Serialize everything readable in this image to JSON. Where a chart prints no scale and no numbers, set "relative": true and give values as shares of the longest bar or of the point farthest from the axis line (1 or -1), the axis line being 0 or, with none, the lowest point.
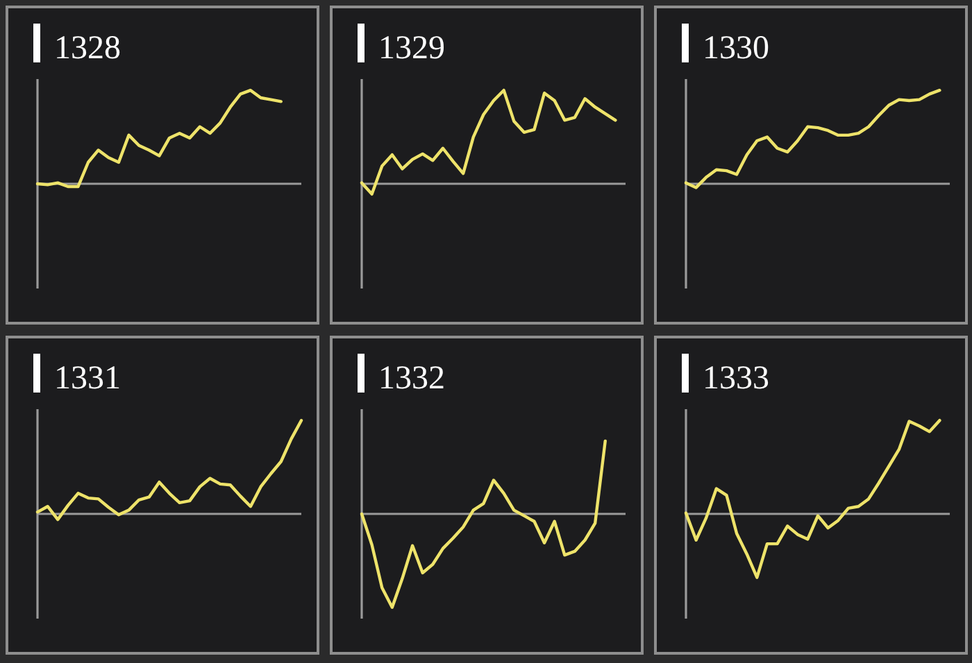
{
  "chart_data": [
    {
      "type": "line",
      "title": "1328",
      "categories": [
        null,
        null,
        null,
        null,
        null,
        null,
        null,
        null,
        null,
        null,
        null,
        null,
        null,
        null,
        null,
        null,
        null,
        null,
        null,
        null,
        null,
        null,
        null,
        null,
        null,
        null,
        null
      ],
      "values": [
        0,
        -0.01,
        0.01,
        -0.03,
        -0.03,
        0.23,
        0.36,
        0.28,
        0.23,
        0.52,
        0.41,
        0.36,
        0.3,
        0.49,
        0.54,
        0.49,
        0.61,
        0.54,
        0.65,
        0.82,
        0.96,
        1,
        0.92,
        0.9,
        0.88,
        null,
        null
      ],
      "color": "#eee36a",
      "relative": true
    },
    {
      "type": "line",
      "title": "1329",
      "categories": [
        null,
        null,
        null,
        null,
        null,
        null,
        null,
        null,
        null,
        null,
        null,
        null,
        null,
        null,
        null,
        null,
        null,
        null,
        null,
        null,
        null,
        null,
        null,
        null,
        null,
        null,
        null
      ],
      "values": [
        0.01,
        -0.11,
        0.19,
        0.31,
        0.16,
        0.26,
        0.32,
        0.25,
        0.38,
        0.24,
        0.11,
        0.5,
        0.74,
        0.89,
        1,
        0.67,
        0.55,
        0.58,
        0.97,
        0.89,
        0.68,
        0.71,
        0.91,
        0.82,
        0.75,
        0.68,
        null
      ],
      "color": "#eee36a",
      "relative": true
    },
    {
      "type": "line",
      "title": "1330",
      "categories": [
        null,
        null,
        null,
        null,
        null,
        null,
        null,
        null,
        null,
        null,
        null,
        null,
        null,
        null,
        null,
        null,
        null,
        null,
        null,
        null,
        null,
        null,
        null,
        null,
        null,
        null,
        null
      ],
      "values": [
        0.01,
        -0.04,
        0.07,
        0.15,
        0.14,
        0.1,
        0.31,
        0.46,
        0.5,
        0.38,
        0.34,
        0.46,
        0.61,
        0.6,
        0.57,
        0.52,
        0.52,
        0.54,
        0.61,
        0.73,
        0.84,
        0.9,
        0.89,
        0.9,
        0.96,
        1,
        null
      ],
      "color": "#eee36a",
      "relative": true
    },
    {
      "type": "line",
      "title": "1331",
      "categories": [
        null,
        null,
        null,
        null,
        null,
        null,
        null,
        null,
        null,
        null,
        null,
        null,
        null,
        null,
        null,
        null,
        null,
        null,
        null,
        null,
        null,
        null,
        null,
        null,
        null,
        null,
        null
      ],
      "values": [
        0.02,
        0.08,
        -0.06,
        0.09,
        0.22,
        0.17,
        0.16,
        0.07,
        -0.01,
        0.04,
        0.15,
        0.18,
        0.34,
        0.22,
        0.12,
        0.14,
        0.29,
        0.38,
        0.32,
        0.31,
        0.19,
        0.08,
        0.29,
        0.43,
        0.56,
        0.8,
        1
      ],
      "color": "#eee36a",
      "relative": true
    },
    {
      "type": "line",
      "title": "1332",
      "categories": [
        null,
        null,
        null,
        null,
        null,
        null,
        null,
        null,
        null,
        null,
        null,
        null,
        null,
        null,
        null,
        null,
        null,
        null,
        null,
        null,
        null,
        null,
        null,
        null,
        null,
        null,
        null
      ],
      "values": [
        0,
        -0.33,
        -0.79,
        -1,
        -0.69,
        -0.34,
        -0.63,
        -0.54,
        -0.37,
        -0.26,
        -0.14,
        0.04,
        0.11,
        0.36,
        0.22,
        0.04,
        -0.02,
        -0.08,
        -0.31,
        -0.08,
        -0.44,
        -0.4,
        -0.28,
        -0.1,
        0.78,
        null,
        null
      ],
      "color": "#eee36a",
      "relative": true
    },
    {
      "type": "line",
      "title": "1333",
      "categories": [
        null,
        null,
        null,
        null,
        null,
        null,
        null,
        null,
        null,
        null,
        null,
        null,
        null,
        null,
        null,
        null,
        null,
        null,
        null,
        null,
        null,
        null,
        null,
        null,
        null,
        null,
        null
      ],
      "values": [
        0.01,
        -0.28,
        -0.04,
        0.27,
        0.2,
        -0.21,
        -0.43,
        -0.68,
        -0.32,
        -0.32,
        -0.13,
        -0.22,
        -0.27,
        -0.02,
        -0.15,
        -0.07,
        0.06,
        0.08,
        0.16,
        0.33,
        0.51,
        0.69,
        0.99,
        0.94,
        0.88,
        1,
        null
      ],
      "color": "#eee36a",
      "relative": true
    }
  ]
}
